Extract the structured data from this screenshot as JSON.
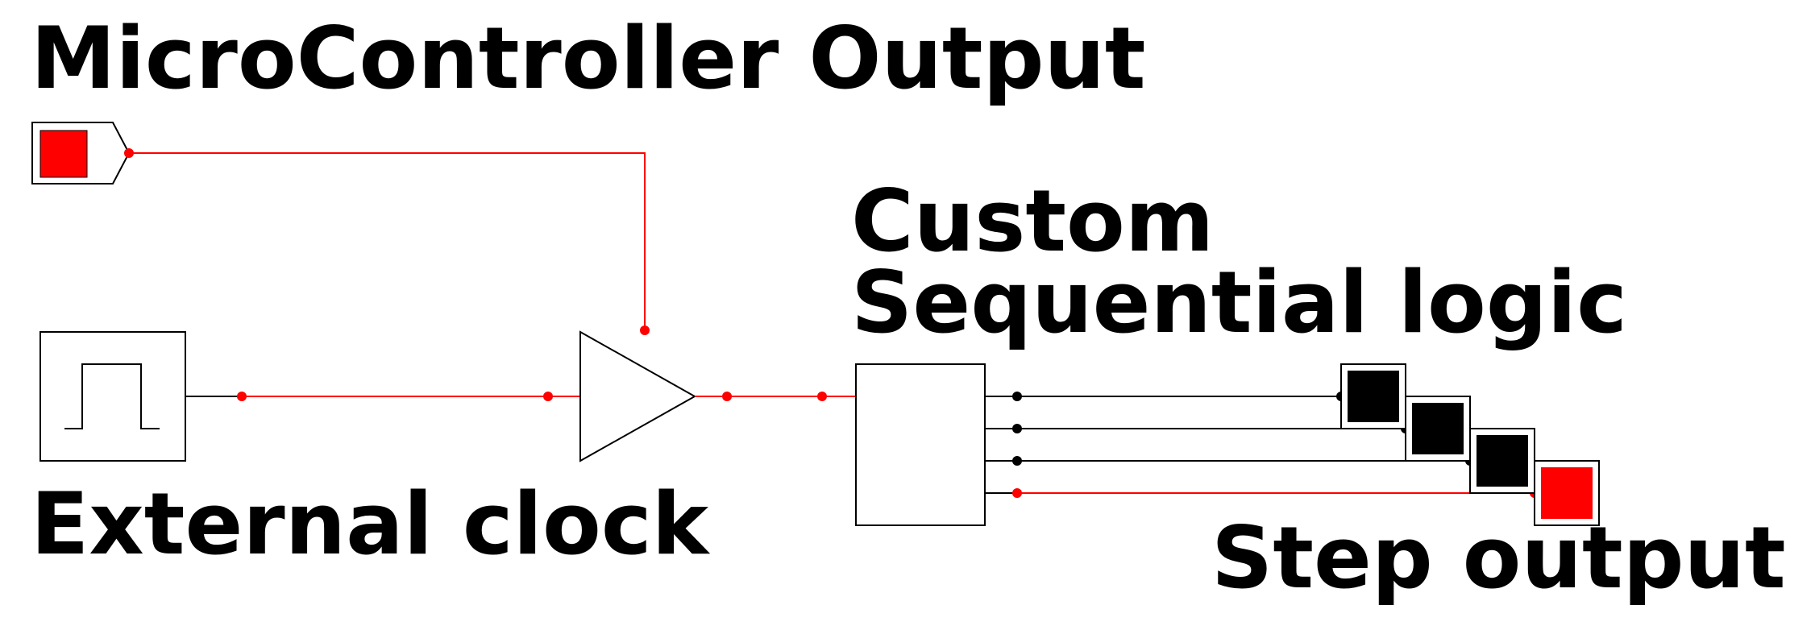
{
  "labels": {
    "microcontroller_output": "MicroController Output",
    "custom_logic_line1": "Custom",
    "custom_logic_line2": "Sequential logic",
    "external_clock": "External clock",
    "step_output": "Step output"
  },
  "colors": {
    "signal_active": "#ff0000",
    "signal_idle": "#000000",
    "led_on": "#ff0000",
    "led_off": "#000000",
    "background": "#ffffff"
  },
  "outputs": [
    {
      "name": "output-1",
      "state": "off"
    },
    {
      "name": "output-2",
      "state": "off"
    },
    {
      "name": "output-3",
      "state": "off"
    },
    {
      "name": "output-4",
      "state": "on"
    }
  ],
  "microcontroller_state": "on"
}
